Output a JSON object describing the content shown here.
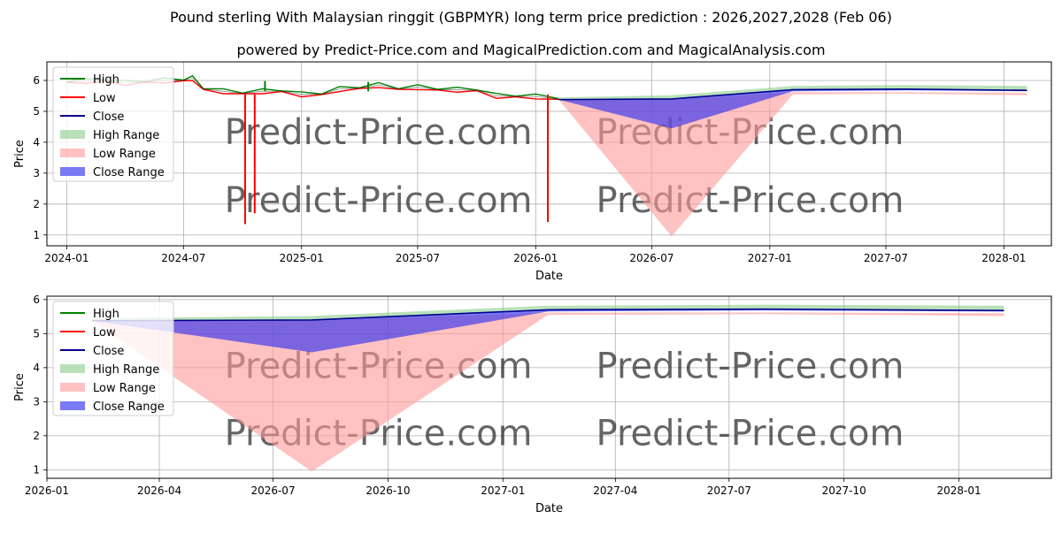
{
  "title": "Pound sterling With Malaysian ringgit (GBPMYR) long term price prediction : 2026,2027,2028 (Feb 06)",
  "subtitle": "powered by Predict-Price.com and MagicalPrediction.com and MagicalAnalysis.com",
  "watermark": "Predict-Price.com",
  "colors": {
    "high": "#008000",
    "low": "#ff0000",
    "close": "#00008b",
    "high_range": "#7fc97f",
    "low_range": "#ff9999",
    "close_range": "#3333ee",
    "grid": "#b0b0b0"
  },
  "chart_data": [
    {
      "type": "line",
      "xlabel": "Date",
      "ylabel": "Price",
      "xlim": [
        "2023-12-01",
        "2028-03-15"
      ],
      "ylim": [
        0.65,
        6.6
      ],
      "grid": true,
      "legend_position": "top-left",
      "x_ticks": [
        "2024-01",
        "2024-07",
        "2025-01",
        "2025-07",
        "2026-01",
        "2026-07",
        "2027-01",
        "2027-07",
        "2028-01"
      ],
      "y_ticks": [
        1,
        2,
        3,
        4,
        5,
        6
      ],
      "legend": [
        "High",
        "Low",
        "Close",
        "High Range",
        "Low Range",
        "Close Range"
      ]
    },
    {
      "type": "line",
      "xlabel": "Date",
      "ylabel": "Price",
      "xlim": [
        "2026-01-01",
        "2028-03-15"
      ],
      "ylim": [
        0.75,
        6.1
      ],
      "grid": true,
      "legend_position": "top-left",
      "x_ticks": [
        "2026-01",
        "2026-04",
        "2026-07",
        "2026-10",
        "2027-01",
        "2027-04",
        "2027-07",
        "2027-10",
        "2028-01"
      ],
      "y_ticks": [
        1,
        2,
        3,
        4,
        5,
        6
      ],
      "legend": [
        "High",
        "Low",
        "Close",
        "High Range",
        "Low Range",
        "Close Range"
      ]
    }
  ],
  "history": {
    "dates": [
      "2024-01-01",
      "2024-02-01",
      "2024-03-01",
      "2024-04-01",
      "2024-05-01",
      "2024-06-01",
      "2024-07-01",
      "2024-07-15",
      "2024-08-01",
      "2024-09-01",
      "2024-10-01",
      "2024-11-01",
      "2024-12-01",
      "2025-01-01",
      "2025-02-01",
      "2025-03-01",
      "2025-04-01",
      "2025-05-01",
      "2025-06-01",
      "2025-07-01",
      "2025-08-01",
      "2025-09-01",
      "2025-10-01",
      "2025-11-01",
      "2025-12-01",
      "2026-01-01",
      "2026-02-06"
    ],
    "close": [
      5.95,
      5.98,
      6.0,
      5.92,
      5.95,
      6.0,
      6.0,
      6.07,
      5.72,
      5.65,
      5.58,
      5.65,
      5.65,
      5.55,
      5.55,
      5.72,
      5.75,
      5.85,
      5.72,
      5.78,
      5.7,
      5.7,
      5.68,
      5.5,
      5.48,
      5.48,
      5.4
    ],
    "low_spikes": [
      {
        "date": "2024-10-05",
        "low": 1.35
      },
      {
        "date": "2024-10-20",
        "low": 1.7
      },
      {
        "date": "2026-01-20",
        "low": 1.42
      }
    ],
    "high_spikes": [
      {
        "date": "2024-11-05",
        "high": 5.98
      },
      {
        "date": "2025-04-15",
        "high": 5.95
      }
    ]
  },
  "forecast": {
    "dates": [
      "2026-02-06",
      "2026-08-01",
      "2027-02-06",
      "2027-08-01",
      "2028-02-06"
    ],
    "close": [
      5.38,
      5.4,
      5.7,
      5.72,
      5.68
    ],
    "close_range_low": [
      5.38,
      4.45,
      5.65,
      5.68,
      5.65
    ],
    "high_range_high": [
      5.45,
      5.52,
      5.82,
      5.85,
      5.82
    ],
    "high_range_low": [
      5.38,
      5.4,
      5.72,
      5.72,
      5.7
    ],
    "low_range_high": [
      5.38,
      5.38,
      5.62,
      5.62,
      5.6
    ],
    "low_range_low": [
      5.38,
      0.95,
      5.55,
      5.57,
      5.52
    ]
  }
}
